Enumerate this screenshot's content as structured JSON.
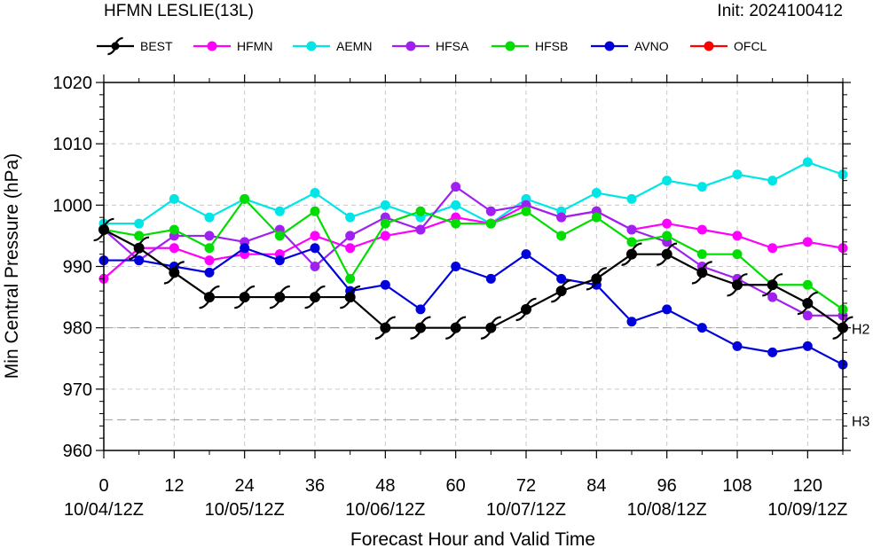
{
  "header": {
    "title": "HFMN LESLIE(13L)",
    "init": "Init: 2024100412"
  },
  "chart_data": {
    "type": "line",
    "xlabel": "Forecast Hour and Valid Time",
    "ylabel": "Min Central Pressure (hPa)",
    "ylim": [
      960,
      1020
    ],
    "yticks": [
      960,
      970,
      980,
      990,
      1000,
      1010,
      1020
    ],
    "xlim": [
      0,
      126
    ],
    "xticks": [
      0,
      12,
      24,
      36,
      48,
      60,
      72,
      84,
      96,
      108,
      120
    ],
    "xtick_dates": [
      "10/04/12Z",
      "10/05/12Z",
      "10/06/12Z",
      "10/07/12Z",
      "10/08/12Z",
      "10/09/12Z"
    ],
    "xtick_date_hours": [
      0,
      24,
      48,
      72,
      96,
      120
    ],
    "grid": true,
    "reference_lines": [
      {
        "label": "H2",
        "value": 980
      },
      {
        "label": "H3",
        "value": 965
      }
    ],
    "legend_position": "top",
    "series": [
      {
        "name": "BEST",
        "color": "#000000",
        "symbol": "hurricane",
        "x": [
          0,
          6,
          12,
          18,
          24,
          30,
          36,
          42,
          48,
          54,
          60,
          66,
          72,
          78,
          84,
          90,
          96,
          102,
          108,
          114,
          120,
          126
        ],
        "y": [
          996,
          993,
          989,
          985,
          985,
          985,
          985,
          985,
          980,
          980,
          980,
          980,
          983,
          986,
          988,
          992,
          992,
          989,
          987,
          987,
          984,
          980
        ]
      },
      {
        "name": "HFMN",
        "color": "#ff00ff",
        "symbol": "dot",
        "x": [
          0,
          6,
          12,
          18,
          24,
          30,
          36,
          42,
          48,
          54,
          60,
          66,
          72,
          78,
          84,
          90,
          96,
          102,
          108,
          114,
          120,
          126
        ],
        "y": [
          988,
          993,
          993,
          991,
          992,
          992,
          995,
          993,
          995,
          996,
          998,
          997,
          1000,
          998,
          999,
          996,
          997,
          996,
          995,
          993,
          994,
          993
        ]
      },
      {
        "name": "AEMN",
        "color": "#00e5e5",
        "symbol": "dot",
        "x": [
          0,
          6,
          12,
          18,
          24,
          30,
          36,
          42,
          48,
          54,
          60,
          66,
          72,
          78,
          84,
          90,
          96,
          102,
          108,
          114,
          120,
          126
        ],
        "y": [
          997,
          997,
          1001,
          998,
          1001,
          999,
          1002,
          998,
          1000,
          998,
          1000,
          997,
          1001,
          999,
          1002,
          1001,
          1004,
          1003,
          1005,
          1004,
          1007,
          1005
        ]
      },
      {
        "name": "HFSA",
        "color": "#a020f0",
        "symbol": "dot",
        "x": [
          0,
          6,
          12,
          18,
          24,
          30,
          36,
          42,
          48,
          54,
          60,
          66,
          72,
          78,
          84,
          90,
          96,
          102,
          108,
          114,
          120,
          126
        ],
        "y": [
          996,
          991,
          995,
          995,
          994,
          996,
          990,
          995,
          998,
          996,
          1003,
          999,
          1000,
          998,
          999,
          996,
          994,
          990,
          988,
          985,
          982,
          982
        ]
      },
      {
        "name": "HFSB",
        "color": "#00dd00",
        "symbol": "dot",
        "x": [
          0,
          6,
          12,
          18,
          24,
          30,
          36,
          42,
          48,
          54,
          60,
          66,
          72,
          78,
          84,
          90,
          96,
          102,
          108,
          114,
          120,
          126
        ],
        "y": [
          996,
          995,
          996,
          993,
          1001,
          995,
          999,
          988,
          997,
          999,
          997,
          997,
          999,
          995,
          998,
          994,
          995,
          992,
          992,
          987,
          987,
          983
        ]
      },
      {
        "name": "AVNO",
        "color": "#0000dd",
        "symbol": "dot",
        "x": [
          0,
          6,
          12,
          18,
          24,
          30,
          36,
          42,
          48,
          54,
          60,
          66,
          72,
          78,
          84,
          90,
          96,
          102,
          108,
          114,
          120,
          126
        ],
        "y": [
          991,
          991,
          990,
          989,
          993,
          991,
          993,
          986,
          987,
          983,
          990,
          988,
          992,
          988,
          987,
          981,
          983,
          980,
          977,
          976,
          977,
          974
        ]
      },
      {
        "name": "OFCL",
        "color": "#ff0000",
        "symbol": "dot",
        "x": [],
        "y": []
      }
    ]
  }
}
